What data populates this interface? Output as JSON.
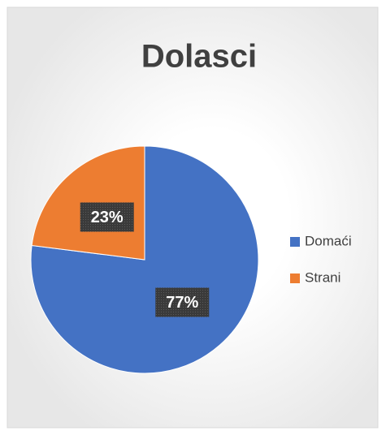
{
  "chart_data": {
    "type": "pie",
    "title": "Dolasci",
    "categories": [
      "Domaći",
      "Strani"
    ],
    "values": [
      77,
      23
    ],
    "value_labels": [
      "77%",
      "23%"
    ],
    "colors": [
      "#4472c4",
      "#ed7d31"
    ],
    "legend": "right"
  }
}
